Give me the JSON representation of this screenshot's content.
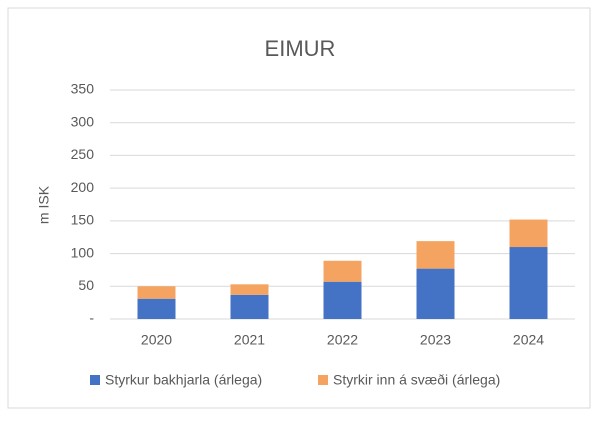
{
  "chart_data": {
    "type": "stacked_bar",
    "title": "EIMUR",
    "y_label": "m ISK",
    "categories": [
      "2020",
      "2021",
      "2022",
      "2023",
      "2024"
    ],
    "series": [
      {
        "name": "Styrkur bakhjarla (árlega)",
        "color": "#4472c4",
        "values": [
          31,
          37,
          57,
          77,
          110
        ]
      },
      {
        "name": "Styrkir inn á svæði (árlega)",
        "color": "#f4a460",
        "values": [
          19,
          16,
          32,
          42,
          42
        ]
      }
    ],
    "ylim": [
      0,
      350
    ],
    "yticks": [
      {
        "value": 0,
        "label": "-"
      },
      50,
      100,
      150,
      200,
      250,
      300,
      350
    ],
    "grid": true,
    "legend": "bottom"
  }
}
